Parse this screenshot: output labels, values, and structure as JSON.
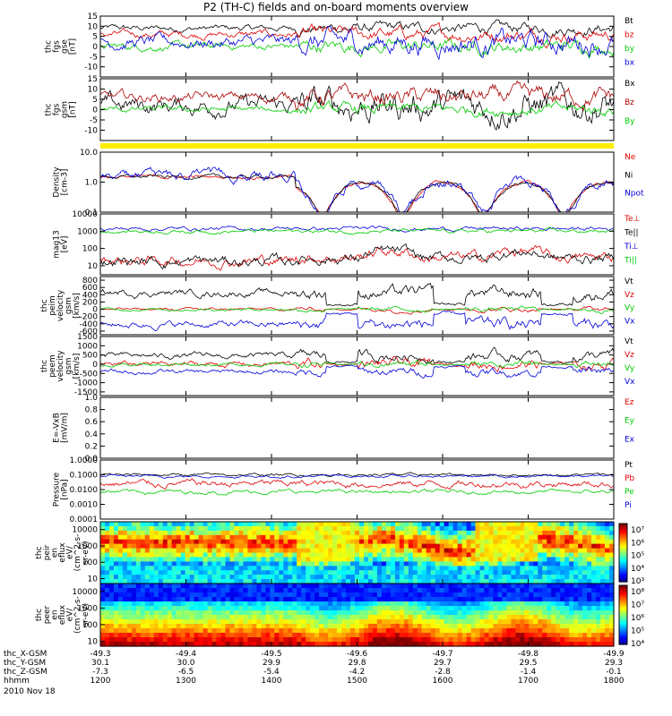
{
  "title": "P2 (TH-C) fields and on-board moments overview",
  "date_label": "2010 Nov 18",
  "chart_data": {
    "type": "line",
    "x_axis": {
      "time_ticks": [
        "1200",
        "1300",
        "1400",
        "1500",
        "1600",
        "1700",
        "1800"
      ],
      "rows": [
        {
          "label": "thc_X-GSM",
          "values": [
            "-49.3",
            "-49.4",
            "-49.5",
            "-49.6",
            "-49.7",
            "-49.8",
            "-49.9"
          ]
        },
        {
          "label": "thc_Y-GSM",
          "values": [
            "30.1",
            "30.0",
            "29.9",
            "29.8",
            "29.7",
            "29.5",
            "29.3"
          ]
        },
        {
          "label": "thc_Z-GSM",
          "values": [
            "-7.3",
            "-6.5",
            "-5.4",
            "-4.2",
            "-2.8",
            "-1.4",
            "-0.1"
          ]
        },
        {
          "label": "hhmm",
          "values": []
        }
      ]
    },
    "panels": [
      {
        "id": "fgs-gse",
        "ylabel": [
          "thc",
          "fgs",
          "gse",
          "[nT]"
        ],
        "ylim": [
          -15,
          15
        ],
        "scale": "linear",
        "ticks": [
          "15",
          "10",
          "5",
          "0",
          "-5",
          "-10"
        ],
        "series": [
          {
            "name": "Bt",
            "color": "#000000",
            "base": 9,
            "amp": 2.5
          },
          {
            "name": "bz",
            "color": "#dd0000",
            "base": 6,
            "amp": 3
          },
          {
            "name": "by",
            "color": "#00cc00",
            "base": 0,
            "amp": 3
          },
          {
            "name": "bx",
            "color": "#0000dd",
            "base": 2,
            "amp": 5
          }
        ]
      },
      {
        "id": "fgs-gsm",
        "ylabel": [
          "thc",
          "fgs",
          "gsm",
          "[nT]"
        ],
        "ylim": [
          -15,
          15
        ],
        "scale": "linear",
        "ticks": [
          "15",
          "10",
          "5",
          "0",
          "-5",
          "-10"
        ],
        "series": [
          {
            "name": "Bx",
            "color": "#000000",
            "base": 2,
            "amp": 7
          },
          {
            "name": "Bz",
            "color": "#aa0000",
            "base": 6,
            "amp": 4
          },
          {
            "name": "By",
            "color": "#00cc00",
            "base": 0,
            "amp": 2.5
          }
        ]
      },
      {
        "id": "density",
        "ylabel": [
          "Density",
          "[cm-3]"
        ],
        "ylim": [
          0.1,
          10
        ],
        "scale": "log",
        "ticks": [
          "10.0",
          "1.0",
          "0.1"
        ],
        "series": [
          {
            "name": "Ne",
            "color": "#dd0000",
            "base": 1.5,
            "amp": 1.2
          },
          {
            "name": "Ni",
            "color": "#000000",
            "base": 1.5,
            "amp": 1.2
          },
          {
            "name": "Npot",
            "color": "#0000dd",
            "base": 1.6,
            "amp": 0.6
          }
        ]
      },
      {
        "id": "temperature",
        "ylabel": [
          "mag13",
          "[eV]"
        ],
        "ylim": [
          3,
          10000
        ],
        "scale": "log",
        "ticks": [
          "10000",
          "1000",
          "100",
          "10"
        ],
        "series": [
          {
            "name": "Te⊥",
            "color": "#dd0000",
            "base": 20,
            "amp": 2.5
          },
          {
            "name": "Te||",
            "color": "#000000",
            "base": 18,
            "amp": 2.5
          },
          {
            "name": "Ti⊥",
            "color": "#0000dd",
            "base": 1400,
            "amp": 1.4
          },
          {
            "name": "Ti||",
            "color": "#00cc00",
            "base": 1000,
            "amp": 1.4
          }
        ]
      },
      {
        "id": "ion-velocity",
        "ylabel": [
          "thc",
          "peim",
          "velocity",
          "gsm",
          "[km/s]"
        ],
        "ylim": [
          -700,
          900
        ],
        "scale": "linear",
        "ticks": [
          "800",
          "600",
          "400",
          "200",
          "0",
          "-200",
          "-400",
          "-600"
        ],
        "series": [
          {
            "name": "Vt",
            "color": "#000000",
            "base": 450,
            "amp": 150
          },
          {
            "name": "Vz",
            "color": "#dd0000",
            "base": 0,
            "amp": 60
          },
          {
            "name": "Vy",
            "color": "#00cc00",
            "base": 0,
            "amp": 60
          },
          {
            "name": "Vx",
            "color": "#0000dd",
            "base": -420,
            "amp": 150
          }
        ]
      },
      {
        "id": "electron-velocity",
        "ylabel": [
          "thc",
          "peem",
          "velocity",
          "gsm",
          "[km/s]"
        ],
        "ylim": [
          -1700,
          1500
        ],
        "scale": "linear",
        "ticks": [
          "1500",
          "1000",
          "500",
          "0",
          "-500",
          "-1000",
          "-1500"
        ],
        "series": [
          {
            "name": "Vt",
            "color": "#000000",
            "base": 450,
            "amp": 250
          },
          {
            "name": "Vz",
            "color": "#dd0000",
            "base": 0,
            "amp": 250
          },
          {
            "name": "Vy",
            "color": "#00cc00",
            "base": 0,
            "amp": 150
          },
          {
            "name": "Vx",
            "color": "#0000dd",
            "base": -420,
            "amp": 200
          }
        ]
      },
      {
        "id": "e-field",
        "ylabel": [
          "E=-VxB",
          "[mV/m]"
        ],
        "ylim": [
          0,
          1
        ],
        "scale": "linear",
        "ticks": [
          "1.0",
          "0.8",
          "0.6",
          "0.4",
          "0.2",
          "0.0"
        ],
        "series": [
          {
            "name": "Ez",
            "color": "#dd0000"
          },
          {
            "name": "Ey",
            "color": "#00cc00"
          },
          {
            "name": "Ex",
            "color": "#0000dd"
          }
        ]
      },
      {
        "id": "pressure",
        "ylabel": [
          "Pressure",
          "[nPa]"
        ],
        "ylim": [
          0.0001,
          1
        ],
        "scale": "log",
        "ticks": [
          "1.0000",
          "0.1000",
          "0.0100",
          "0.0010",
          "0.0001"
        ],
        "series": [
          {
            "name": "Pt",
            "color": "#000000",
            "base": 0.1,
            "amp": 1.3
          },
          {
            "name": "Pb",
            "color": "#dd0000",
            "base": 0.025,
            "amp": 2.0
          },
          {
            "name": "Pe",
            "color": "#00cc00",
            "base": 0.007,
            "amp": 1.5
          },
          {
            "name": "Pi",
            "color": "#0000dd",
            "base": 0.08,
            "amp": 1.3
          }
        ]
      }
    ],
    "spectrograms": [
      {
        "id": "ion-spectrogram",
        "ylabel": [
          "thc",
          "peir",
          "en",
          "eflux",
          "eV/",
          "(cm^2-s-",
          "sr-eV)"
        ],
        "ylim": [
          5,
          30000
        ],
        "scale": "log",
        "ticks": [
          "10000",
          "1000",
          "100",
          "10"
        ],
        "colorbar_ticks": [
          "10⁷",
          "10⁶",
          "10⁵",
          "10⁴",
          "10³"
        ]
      },
      {
        "id": "electron-spectrogram",
        "ylabel": [
          "thc",
          "peer",
          "en",
          "eflux",
          "eV/",
          "(cm^2-s-",
          "sr-eV)"
        ],
        "ylim": [
          5,
          30000
        ],
        "scale": "log",
        "ticks": [
          "10000",
          "1000",
          "100",
          "10"
        ],
        "colorbar_ticks": [
          "10⁸",
          "10⁷",
          "10⁶",
          "10⁵",
          "10⁴"
        ]
      }
    ],
    "legend_placement": "right"
  }
}
